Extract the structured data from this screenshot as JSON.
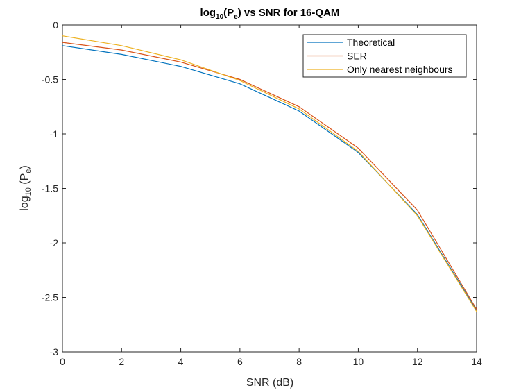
{
  "chart_data": {
    "type": "line",
    "title_parts": {
      "prefix": "log",
      "sub": "10",
      "mid": "(P",
      "sub2": "e",
      "suffix": ")  vs  SNR  for  16-QAM"
    },
    "xlabel": "SNR (dB)",
    "ylabel_parts": {
      "prefix": "log",
      "sub": "10",
      "mid": "  (P",
      "sub2": "e",
      "suffix": ")"
    },
    "xlim": [
      0,
      14
    ],
    "ylim": [
      -3,
      0
    ],
    "xticks": [
      0,
      2,
      4,
      6,
      8,
      10,
      12,
      14
    ],
    "xtick_labels": [
      "0",
      "2",
      "4",
      "6",
      "8",
      "10",
      "12",
      "14"
    ],
    "yticks": [
      0,
      -0.5,
      -1,
      -1.5,
      -2,
      -2.5,
      -3
    ],
    "ytick_labels": [
      "0",
      "-0.5",
      "-1",
      "-1.5",
      "-2",
      "-2.5",
      "-3"
    ],
    "grid": false,
    "legend_position": "top-right",
    "x": [
      0,
      2,
      4,
      6,
      8,
      10,
      12,
      14
    ],
    "series": [
      {
        "name": "Theoretical",
        "color": "#0072BD",
        "values": [
          -0.19,
          -0.27,
          -0.38,
          -0.54,
          -0.79,
          -1.17,
          -1.74,
          -2.62
        ]
      },
      {
        "name": "SER",
        "color": "#D95319",
        "values": [
          -0.16,
          -0.23,
          -0.34,
          -0.5,
          -0.75,
          -1.13,
          -1.7,
          -2.61
        ]
      },
      {
        "name": "Only nearest neighbours",
        "color": "#EDB120",
        "values": [
          -0.1,
          -0.19,
          -0.32,
          -0.51,
          -0.77,
          -1.16,
          -1.75,
          -2.63
        ]
      }
    ]
  }
}
